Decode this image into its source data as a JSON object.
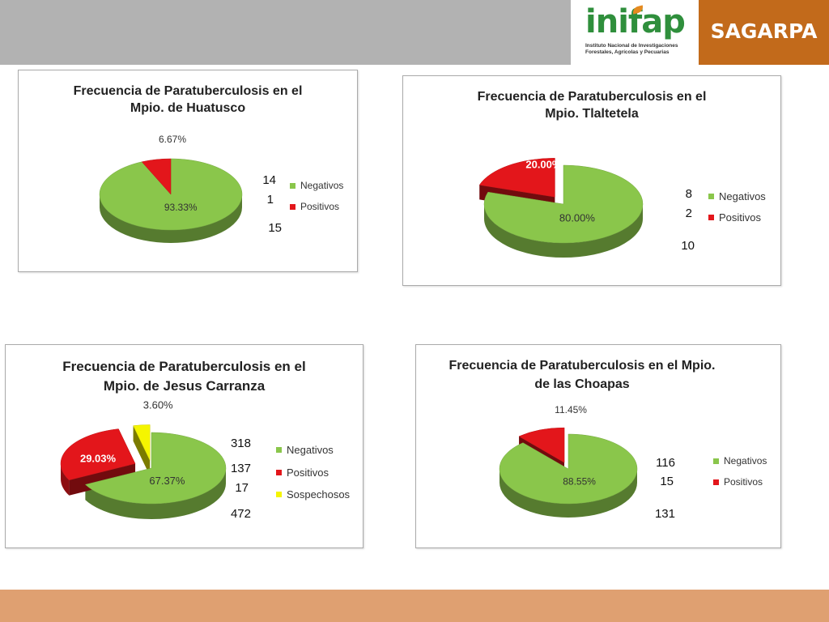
{
  "header": {
    "inifap_logo": "inifap",
    "inifap_subtitle": "Instituto Nacional de Investigaciones Forestales, Agrícolas y Pecuarias",
    "sagarpa_logo": "SAGARPA"
  },
  "colors": {
    "negativos": "#8ac64b",
    "positivos": "#e3161b",
    "sospechosos": "#f5f500",
    "top_band": "#b2b2b2",
    "sagarpa": "#c26a1b",
    "bottom_band": "#dfa071"
  },
  "chart_data": [
    {
      "type": "pie",
      "title_lines": [
        "Frecuencia de Paratuberculosis en el",
        "Mpio. de Huatusco"
      ],
      "legend": [
        "Negativos",
        "Positivos"
      ],
      "slices": [
        {
          "name": "Negativos",
          "count": "14",
          "percent": 93.33,
          "label": "93.33%"
        },
        {
          "name": "Positivos",
          "count": "1",
          "percent": 6.67,
          "label": "6.67%"
        }
      ],
      "total": "15"
    },
    {
      "type": "pie",
      "title_lines": [
        "Frecuencia de Paratuberculosis en el",
        "Mpio. Tlaltetela"
      ],
      "legend": [
        "Negativos",
        "Positivos"
      ],
      "slices": [
        {
          "name": "Negativos",
          "count": "8",
          "percent": 80.0,
          "label": "80.00%"
        },
        {
          "name": "Positivos",
          "count": "2",
          "percent": 20.0,
          "label": "20.00%"
        }
      ],
      "total": "10"
    },
    {
      "type": "pie",
      "title_lines": [
        "Frecuencia de Paratuberculosis en el",
        "Mpio. de Jesus Carranza"
      ],
      "legend": [
        "Negativos",
        "Positivos",
        "Sospechosos"
      ],
      "slices": [
        {
          "name": "Negativos",
          "count": "318",
          "percent": 67.37,
          "label": "67.37%"
        },
        {
          "name": "Positivos",
          "count": "137",
          "percent": 29.03,
          "label": "29.03%"
        },
        {
          "name": "Sospechosos",
          "count": "17",
          "percent": 3.6,
          "label": "3.60%"
        }
      ],
      "total": "472"
    },
    {
      "type": "pie",
      "title_lines": [
        "Frecuencia de Paratuberculosis en el Mpio.",
        "de las Choapas"
      ],
      "legend": [
        "Negativos",
        "Positivos"
      ],
      "slices": [
        {
          "name": "Negativos",
          "count": "116",
          "percent": 88.55,
          "label": "88.55%"
        },
        {
          "name": "Positivos",
          "count": "15",
          "percent": 11.45,
          "label": "11.45%"
        }
      ],
      "total": "131"
    }
  ]
}
